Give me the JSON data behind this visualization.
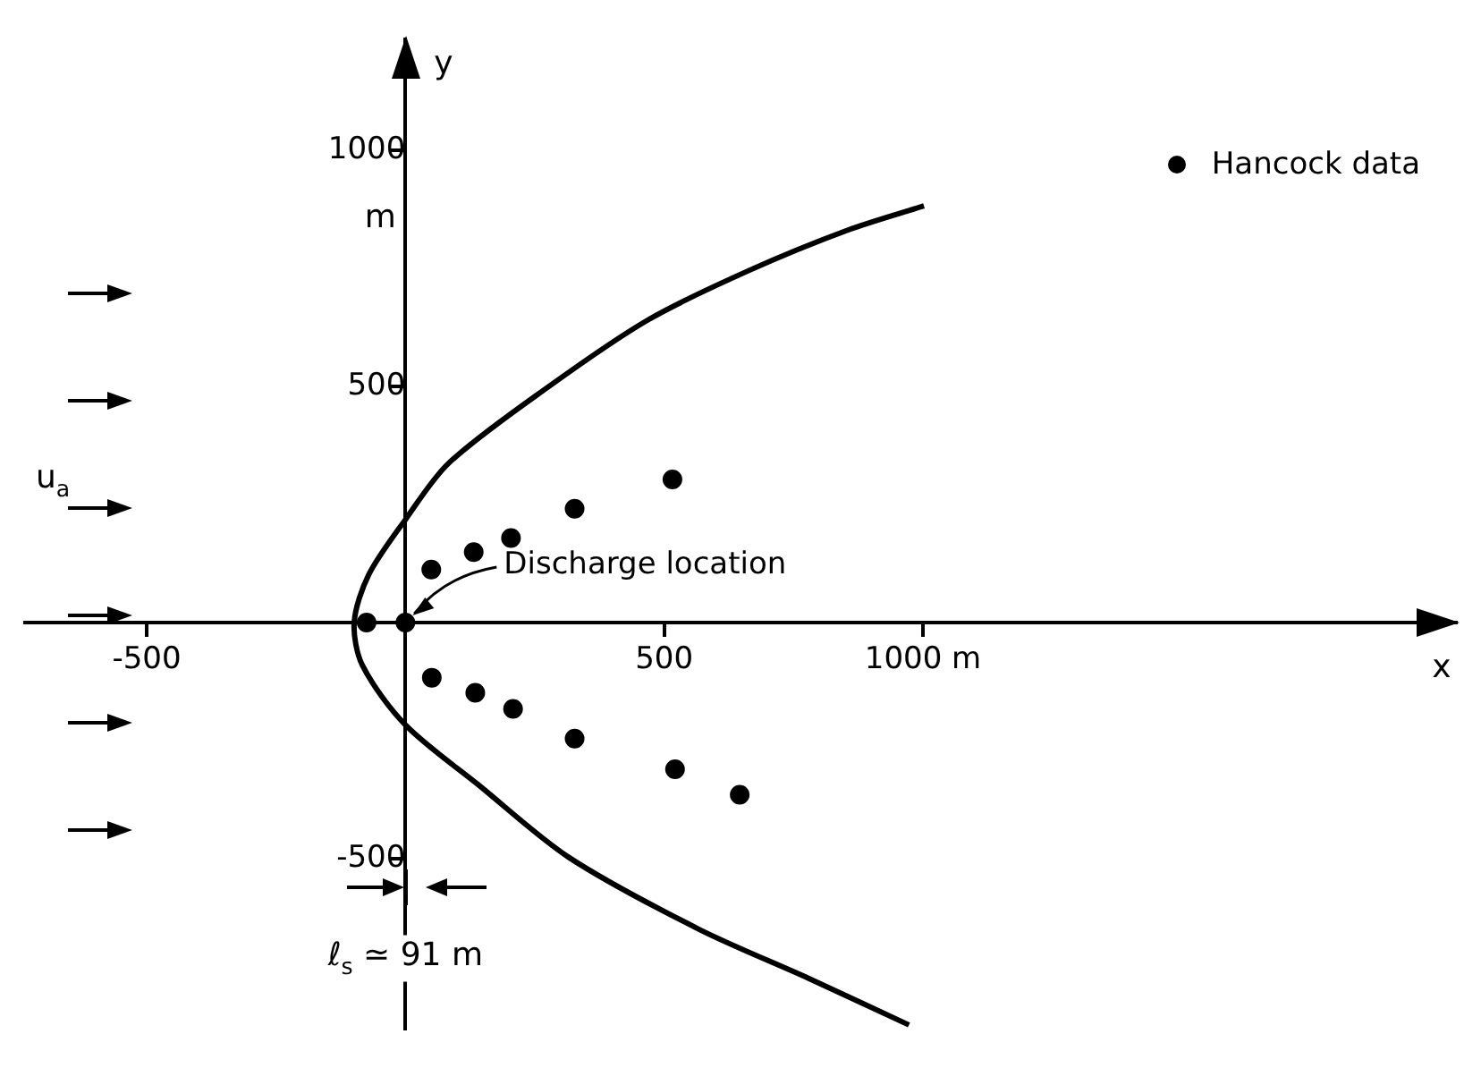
{
  "chart_data": {
    "type": "scatter",
    "xlabel": "x",
    "ylabel": "y",
    "xlim": [
      -735,
      2030
    ],
    "ylim": [
      -860,
      1235
    ],
    "xticks": [
      -500,
      500,
      {
        "value": 1000,
        "label": "1000 m"
      }
    ],
    "yticks": [
      -500,
      500,
      1000
    ],
    "grid": false,
    "legend": "top right",
    "series": [
      {
        "name": "Hancock data",
        "color": "#000000",
        "marker": "circle",
        "x": [
          -75,
          0,
          50,
          132,
          204,
          327,
          516,
          51,
          135,
          208,
          327,
          521,
          646
        ],
        "values": [
          0,
          0,
          112,
          149,
          179,
          241,
          303,
          -117,
          -149,
          -183,
          -246,
          -311,
          -365
        ]
      },
      {
        "type": "line",
        "color": "#000000",
        "marker": "none",
        "line_style": "solid",
        "x": [
          1002,
          856,
          664,
          470,
          277,
          84,
          0,
          -71,
          -99,
          -83,
          0,
          142,
          316,
          567,
          779,
          973
        ],
        "values": [
          883,
          832,
          746,
          642,
          500,
          338,
          218,
          101,
          0,
          -91,
          -217,
          -345,
          -498,
          -650,
          -754,
          -853
        ]
      }
    ],
    "annotations": [
      {
        "text": "Discharge location",
        "x": 0,
        "y": 0
      },
      "m",
      "u$_{a}$",
      "ℓ$_{s}$ ≃ 91 m"
    ]
  }
}
